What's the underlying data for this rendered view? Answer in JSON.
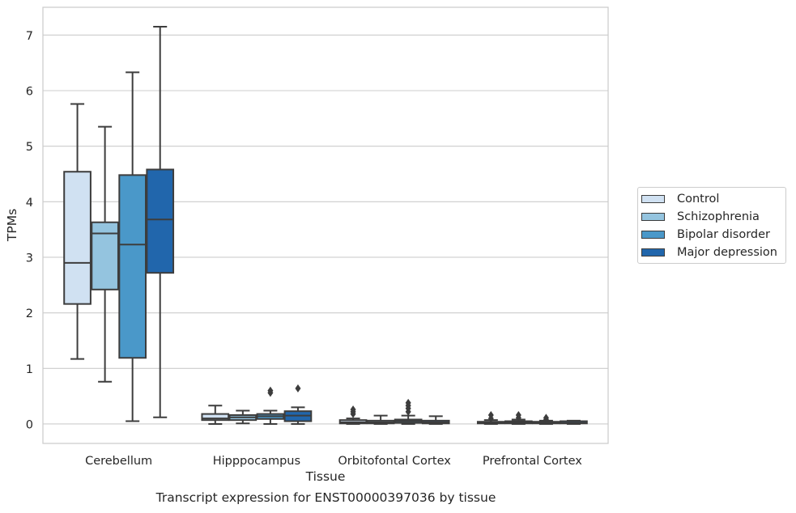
{
  "chart_data": {
    "type": "boxplot",
    "title": "",
    "xlabel": "Tissue",
    "ylabel": "TPMs",
    "caption": "Transcript expression for ENST00000397036 by tissue",
    "categories": [
      "Cerebellum",
      "Hipppocampus",
      "Orbitofontal Cortex",
      "Prefrontal Cortex"
    ],
    "ylim": [
      -0.35,
      7.5
    ],
    "yticks": [
      0,
      1,
      2,
      3,
      4,
      5,
      6,
      7
    ],
    "grid": "horizontal",
    "legend_position": "right",
    "series": [
      {
        "name": "Control",
        "color": "#d0e1f2",
        "boxes": [
          {
            "whislo": 1.17,
            "q1": 2.16,
            "med": 2.9,
            "q3": 4.54,
            "whishi": 5.76,
            "fliers": []
          },
          {
            "whislo": 0.0,
            "q1": 0.07,
            "med": 0.1,
            "q3": 0.18,
            "whishi": 0.33,
            "fliers": []
          },
          {
            "whislo": 0.0,
            "q1": 0.01,
            "med": 0.03,
            "q3": 0.07,
            "whishi": 0.1,
            "fliers": [
              0.18,
              0.22,
              0.26
            ]
          },
          {
            "whislo": 0.0,
            "q1": 0.01,
            "med": 0.02,
            "q3": 0.04,
            "whishi": 0.07,
            "fliers": [
              0.1,
              0.16
            ]
          }
        ]
      },
      {
        "name": "Schizophrenia",
        "color": "#94c4df",
        "boxes": [
          {
            "whislo": 0.76,
            "q1": 2.42,
            "med": 3.43,
            "q3": 3.63,
            "whishi": 5.35,
            "fliers": []
          },
          {
            "whislo": 0.01,
            "q1": 0.07,
            "med": 0.12,
            "q3": 0.16,
            "whishi": 0.24,
            "fliers": []
          },
          {
            "whislo": 0.0,
            "q1": 0.01,
            "med": 0.03,
            "q3": 0.06,
            "whishi": 0.15,
            "fliers": []
          },
          {
            "whislo": 0.0,
            "q1": 0.01,
            "med": 0.03,
            "q3": 0.05,
            "whishi": 0.08,
            "fliers": [
              0.11,
              0.16
            ]
          }
        ]
      },
      {
        "name": "Bipolar disorder",
        "color": "#4a98c9",
        "boxes": [
          {
            "whislo": 0.05,
            "q1": 1.19,
            "med": 3.23,
            "q3": 4.48,
            "whishi": 6.33,
            "fliers": []
          },
          {
            "whislo": 0.0,
            "q1": 0.09,
            "med": 0.14,
            "q3": 0.18,
            "whishi": 0.24,
            "fliers": [
              0.56,
              0.6
            ]
          },
          {
            "whislo": 0.0,
            "q1": 0.02,
            "med": 0.05,
            "q3": 0.08,
            "whishi": 0.15,
            "fliers": [
              0.22,
              0.28,
              0.33,
              0.38
            ]
          },
          {
            "whislo": 0.0,
            "q1": 0.01,
            "med": 0.02,
            "q3": 0.04,
            "whishi": 0.06,
            "fliers": [
              0.08,
              0.11
            ]
          }
        ]
      },
      {
        "name": "Major depression",
        "color": "#2166ac",
        "boxes": [
          {
            "whislo": 0.12,
            "q1": 2.72,
            "med": 3.68,
            "q3": 4.58,
            "whishi": 7.15,
            "fliers": []
          },
          {
            "whislo": 0.0,
            "q1": 0.05,
            "med": 0.15,
            "q3": 0.23,
            "whishi": 0.3,
            "fliers": [
              0.64
            ]
          },
          {
            "whislo": 0.0,
            "q1": 0.01,
            "med": 0.03,
            "q3": 0.06,
            "whishi": 0.14,
            "fliers": []
          },
          {
            "whislo": 0.0,
            "q1": 0.01,
            "med": 0.02,
            "q3": 0.05,
            "whishi": 0.06,
            "fliers": []
          }
        ]
      }
    ]
  }
}
